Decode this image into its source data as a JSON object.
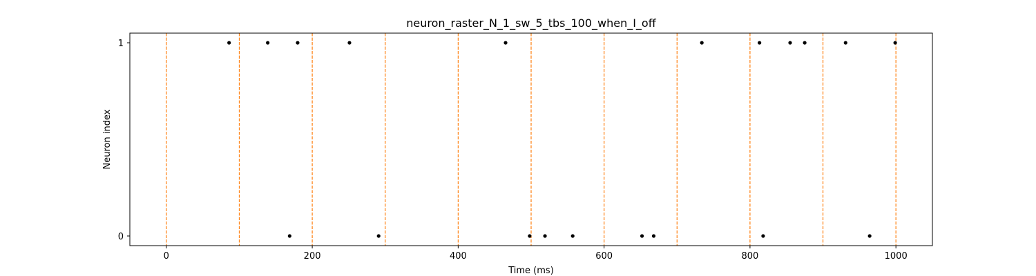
{
  "chart_data": {
    "type": "scatter",
    "title": "neuron_raster_N_1_sw_5_tbs_100_when_I_off",
    "xlabel": "Time (ms)",
    "ylabel": "Neuron index",
    "xlim": [
      -50,
      1050
    ],
    "ylim": [
      -0.05,
      1.05
    ],
    "xticks": [
      0,
      200,
      400,
      600,
      800,
      1000
    ],
    "yticks": [
      0,
      1
    ],
    "grid": false,
    "vlines": {
      "x": [
        0,
        100,
        200,
        300,
        400,
        500,
        600,
        700,
        800,
        900,
        1000
      ],
      "style": "dashed",
      "color": "#ff7f0e"
    },
    "marker_color": "#000000",
    "series": [
      {
        "neuron": 1,
        "x": [
          86,
          139,
          180,
          251,
          465,
          734,
          813,
          855,
          875,
          931,
          999
        ]
      },
      {
        "neuron": 0,
        "x": [
          169,
          291,
          498,
          519,
          557,
          652,
          668,
          818,
          964
        ]
      }
    ]
  }
}
